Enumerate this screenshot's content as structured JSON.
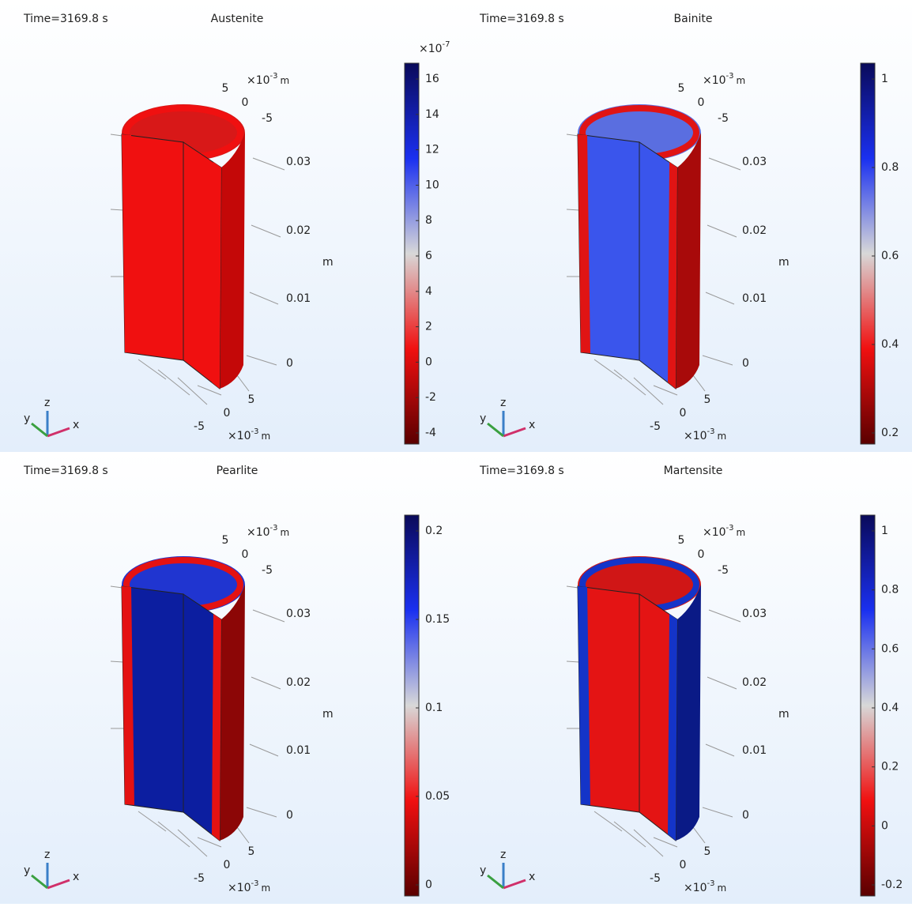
{
  "panels": [
    {
      "time": "Time=3169.8 s",
      "title": "Austenite",
      "colorbar": {
        "base": "×10",
        "exp": "-7",
        "ticks": [
          "16",
          "14",
          "12",
          "10",
          "8",
          "6",
          "4",
          "2",
          "0",
          "-2",
          "-4"
        ]
      },
      "z_ticks": [
        "0.03",
        "0.02",
        "0.01",
        "0"
      ],
      "z_unit": "m",
      "top_ticks": [
        "5",
        "0",
        "-5"
      ],
      "bottom_ticks": [
        "5",
        "0",
        "-5"
      ],
      "scale": {
        "base": "×10",
        "exp": "-3",
        "unit": "m"
      },
      "triad": {
        "x": "x",
        "y": "y",
        "z": "z"
      },
      "colors": {
        "face": "#f01010",
        "rim": "#f01010",
        "top": "#d81818",
        "side": "#c40808"
      }
    },
    {
      "time": "Time=3169.8 s",
      "title": "Bainite",
      "colorbar": {
        "ticks": [
          "1",
          "0.8",
          "0.6",
          "0.4",
          "0.2"
        ]
      },
      "z_ticks": [
        "0.03",
        "0.02",
        "0.01",
        "0"
      ],
      "z_unit": "m",
      "top_ticks": [
        "5",
        "0",
        "-5"
      ],
      "bottom_ticks": [
        "5",
        "0",
        "-5"
      ],
      "scale": {
        "base": "×10",
        "exp": "-3",
        "unit": "m"
      },
      "triad": {
        "x": "x",
        "y": "y",
        "z": "z"
      },
      "colors": {
        "face": "#3a55ec",
        "rim": "#e01414",
        "top": "#5a6ee0",
        "side": "#a80a0a"
      }
    },
    {
      "time": "Time=3169.8 s",
      "title": "Pearlite",
      "colorbar": {
        "ticks": [
          "0.2",
          "0.15",
          "0.1",
          "0.05",
          "0"
        ]
      },
      "z_ticks": [
        "0.03",
        "0.02",
        "0.01",
        "0"
      ],
      "z_unit": "m",
      "top_ticks": [
        "5",
        "0",
        "-5"
      ],
      "bottom_ticks": [
        "5",
        "0",
        "-5"
      ],
      "scale": {
        "base": "×10",
        "exp": "-3",
        "unit": "m"
      },
      "triad": {
        "x": "x",
        "y": "y",
        "z": "z"
      },
      "colors": {
        "face": "#0c1ea0",
        "rim": "#e41212",
        "top": "#2035d0",
        "side": "#8c0606"
      }
    },
    {
      "time": "Time=3169.8 s",
      "title": "Martensite",
      "colorbar": {
        "ticks": [
          "1",
          "0.8",
          "0.6",
          "0.4",
          "0.2",
          "0",
          "-0.2"
        ]
      },
      "z_ticks": [
        "0.03",
        "0.02",
        "0.01",
        "0"
      ],
      "z_unit": "m",
      "top_ticks": [
        "5",
        "0",
        "-5"
      ],
      "bottom_ticks": [
        "5",
        "0",
        "-5"
      ],
      "scale": {
        "base": "×10",
        "exp": "-3",
        "unit": "m"
      },
      "triad": {
        "x": "x",
        "y": "y",
        "z": "z"
      },
      "colors": {
        "face": "#e41414",
        "rim": "#1434c8",
        "top": "#d01616",
        "side": "#0a1a86"
      }
    }
  ]
}
